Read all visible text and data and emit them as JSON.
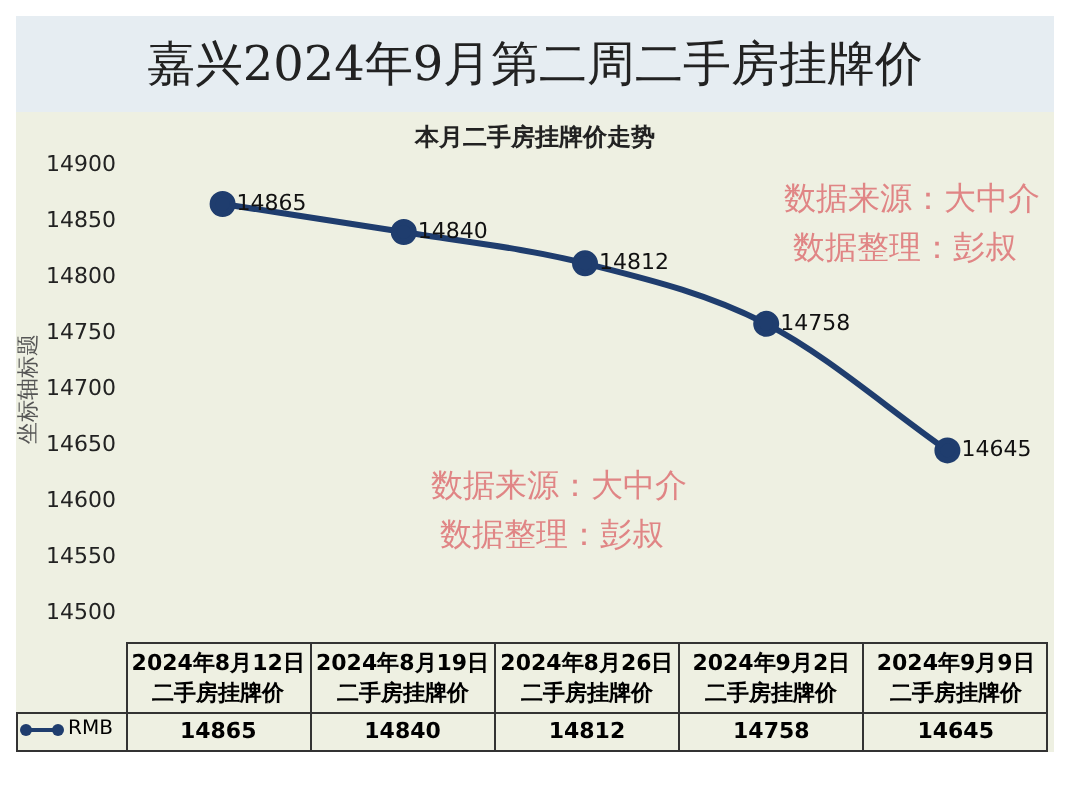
{
  "chart_data": {
    "type": "line",
    "title": "嘉兴2024年9月第二周二手房挂牌价",
    "subtitle": "本月二手房挂牌价走势",
    "ylabel": "坐标轴标题",
    "categories": [
      "2024年8月12日二手房挂牌价",
      "2024年8月19日二手房挂牌价",
      "2024年8月26日二手房挂牌价",
      "2024年9月2日二手房挂牌价",
      "2024年9月9日二手房挂牌价"
    ],
    "series": [
      {
        "name": "RMB",
        "color": "#1f3d6e",
        "values": [
          14865,
          14840,
          14812,
          14758,
          14645
        ],
        "value_labels": [
          "14865",
          "14840",
          "14812",
          "14758",
          "14645"
        ]
      }
    ],
    "ylim": [
      14500,
      14900
    ],
    "yticks": [
      14500,
      14550,
      14600,
      14650,
      14700,
      14750,
      14800,
      14850,
      14900
    ],
    "grid": false,
    "legend": "bottom",
    "marker": "circle",
    "line_style": "solid",
    "data_labels": true,
    "annotations": [
      "数据来源：大中介",
      "数据整理：彭叔",
      "数据来源：大中介",
      "数据整理：彭叔",
      "14865",
      "14840",
      "14812",
      "14758",
      "14645"
    ]
  }
}
